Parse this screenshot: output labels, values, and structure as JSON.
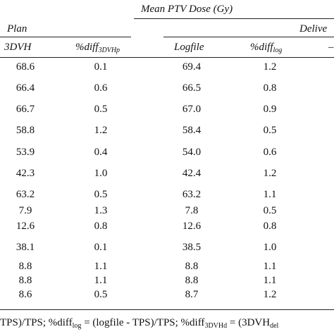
{
  "table": {
    "group_header": "Mean PTV  Dose (Gy)",
    "plan_header": "Plan",
    "delivered_header": "Delive",
    "col_3dvh": "3DVH",
    "col_diff3dvhp_prefix": "%diff",
    "col_diff3dvhp_sub": "3DVHp",
    "col_logfile": "Logfile",
    "col_difflog_prefix": "%diff",
    "col_difflog_sub": "log",
    "col_trailing": "–",
    "rows": [
      {
        "plan": "68.6",
        "diffp": "0.1",
        "log": "69.4",
        "difflog": "1.2"
      },
      {
        "plan": "66.4",
        "diffp": "0.6",
        "log": "66.5",
        "difflog": "0.8"
      },
      {
        "plan": "66.7",
        "diffp": "0.5",
        "log": "67.0",
        "difflog": "0.9"
      },
      {
        "plan": "58.8",
        "diffp": "1.2",
        "log": "58.4",
        "difflog": "0.5"
      },
      {
        "plan": "53.9",
        "diffp": "0.4",
        "log": "54.0",
        "difflog": "0.6"
      },
      {
        "plan": "42.3",
        "diffp": "1.0",
        "log": "42.4",
        "difflog": "1.2"
      },
      {
        "plan": "63.2",
        "diffp": "0.5",
        "log": "63.2",
        "difflog": "1.1"
      },
      {
        "plan": "7.9",
        "diffp": "1.3",
        "log": "7.8",
        "difflog": "0.5"
      },
      {
        "plan": "12.6",
        "diffp": "0.8",
        "log": "12.6",
        "difflog": "0.8"
      },
      {
        "plan": "38.1",
        "diffp": "0.1",
        "log": "38.5",
        "difflog": "1.0"
      },
      {
        "plan": "8.8",
        "diffp": "1.1",
        "log": "8.8",
        "difflog": "1.1"
      },
      {
        "plan": "8.8",
        "diffp": "1.1",
        "log": "8.8",
        "difflog": "1.1"
      },
      {
        "plan": "8.6",
        "diffp": "0.5",
        "log": "8.7",
        "difflog": "1.2"
      }
    ]
  },
  "footnote": {
    "part1": "TPS)/TPS; %diff",
    "sub1": "log",
    "part2": " = (logfile - TPS)/TPS; %diff",
    "sub2": "3DVHd",
    "part3": " = (3DVH",
    "sub3": "del"
  }
}
